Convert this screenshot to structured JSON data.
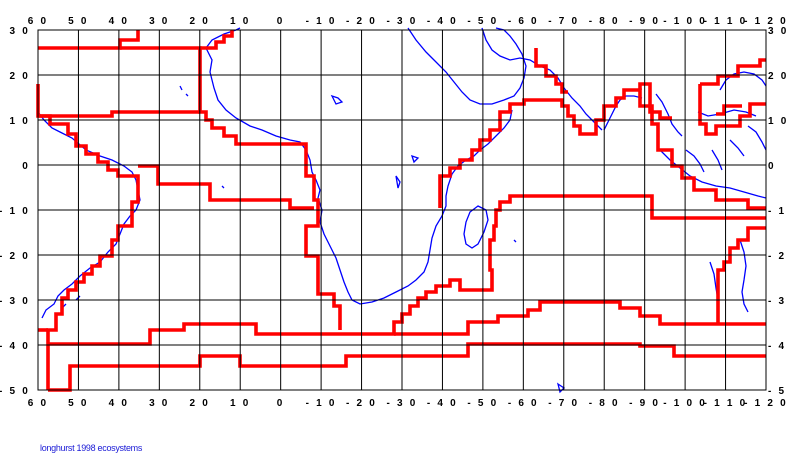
{
  "caption": "longhurst 1998 ecosystems",
  "colors": {
    "coast": "#0000ff",
    "province": "#ff0000",
    "grid": "#000000"
  },
  "axes": {
    "x_ticks": [
      "60",
      "50",
      "40",
      "30",
      "20",
      "10",
      "0",
      "-10",
      "-20",
      "-30",
      "-40",
      "-50",
      "-60",
      "-70",
      "-80",
      "-90",
      "-100",
      "-110",
      "-120"
    ],
    "y_ticks": [
      "30",
      "20",
      "10",
      "0",
      "-10",
      "-20",
      "-30",
      "-40",
      "-50"
    ]
  }
}
